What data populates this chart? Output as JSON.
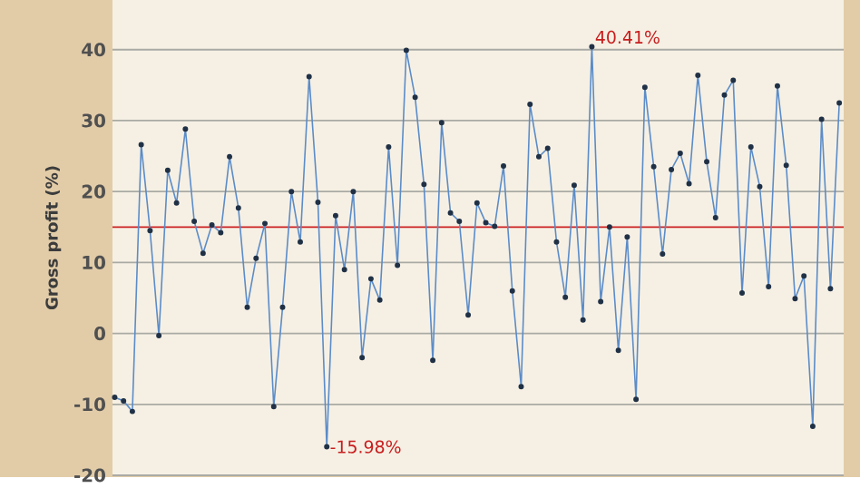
{
  "chart_data": {
    "type": "line",
    "ylabel": "Gross profit (%)",
    "categories": [
      null,
      null,
      null,
      null,
      null,
      null,
      null,
      null,
      null,
      null,
      null,
      null,
      null,
      null,
      null,
      null,
      null,
      null,
      null,
      null,
      null,
      null,
      null,
      null,
      null,
      null,
      null,
      null,
      null,
      null,
      null,
      null,
      null,
      null,
      null,
      null,
      null,
      null,
      null,
      null,
      null,
      null,
      null,
      null,
      null,
      null,
      null,
      null,
      null,
      null,
      null,
      null,
      null,
      null,
      null,
      null,
      null,
      null,
      null,
      null,
      null,
      null,
      null,
      null,
      null,
      null,
      null,
      null,
      null,
      null,
      null,
      null,
      null,
      null,
      null,
      null,
      null,
      null,
      null,
      null,
      null,
      null,
      null
    ],
    "series": [
      {
        "color": "#5b8cc8",
        "values": [
          -9.0,
          -9.5,
          -11.0,
          26.6,
          14.5,
          -0.3,
          23.0,
          18.4,
          28.8,
          15.8,
          11.3,
          15.3,
          14.2,
          24.9,
          17.7,
          3.7,
          10.6,
          15.5,
          -10.3,
          3.7,
          20.0,
          12.9,
          36.2,
          18.5,
          -15.98,
          16.6,
          9.0,
          20.0,
          -3.4,
          7.7,
          4.7,
          26.3,
          9.6,
          39.9,
          33.3,
          21.0,
          -3.8,
          29.7,
          17.0,
          15.8,
          2.6,
          18.4,
          15.6,
          15.1,
          23.6,
          6.0,
          -7.5,
          32.3,
          24.9,
          26.1,
          12.9,
          5.1,
          20.9,
          1.9,
          40.41,
          4.5,
          15.0,
          -2.4,
          13.6,
          -9.3,
          34.7,
          23.5,
          11.2,
          23.1,
          25.4,
          21.1,
          36.4,
          24.2,
          16.3,
          33.6,
          35.7,
          5.7,
          26.3,
          20.7,
          6.6,
          34.9,
          23.7,
          4.9,
          8.1,
          -13.1,
          30.2,
          6.3,
          32.5
        ]
      }
    ],
    "ylim": [
      -20,
      47
    ],
    "yticks": [
      -20,
      -10,
      0,
      10,
      20,
      30,
      40
    ],
    "grid": "y",
    "marker": "circle",
    "line_style": "solid",
    "ref_lines": [
      {
        "axis": "y",
        "value": 15,
        "color": "#cc2222"
      }
    ],
    "annotations": [
      "40.41%",
      "-15.98%"
    ]
  }
}
